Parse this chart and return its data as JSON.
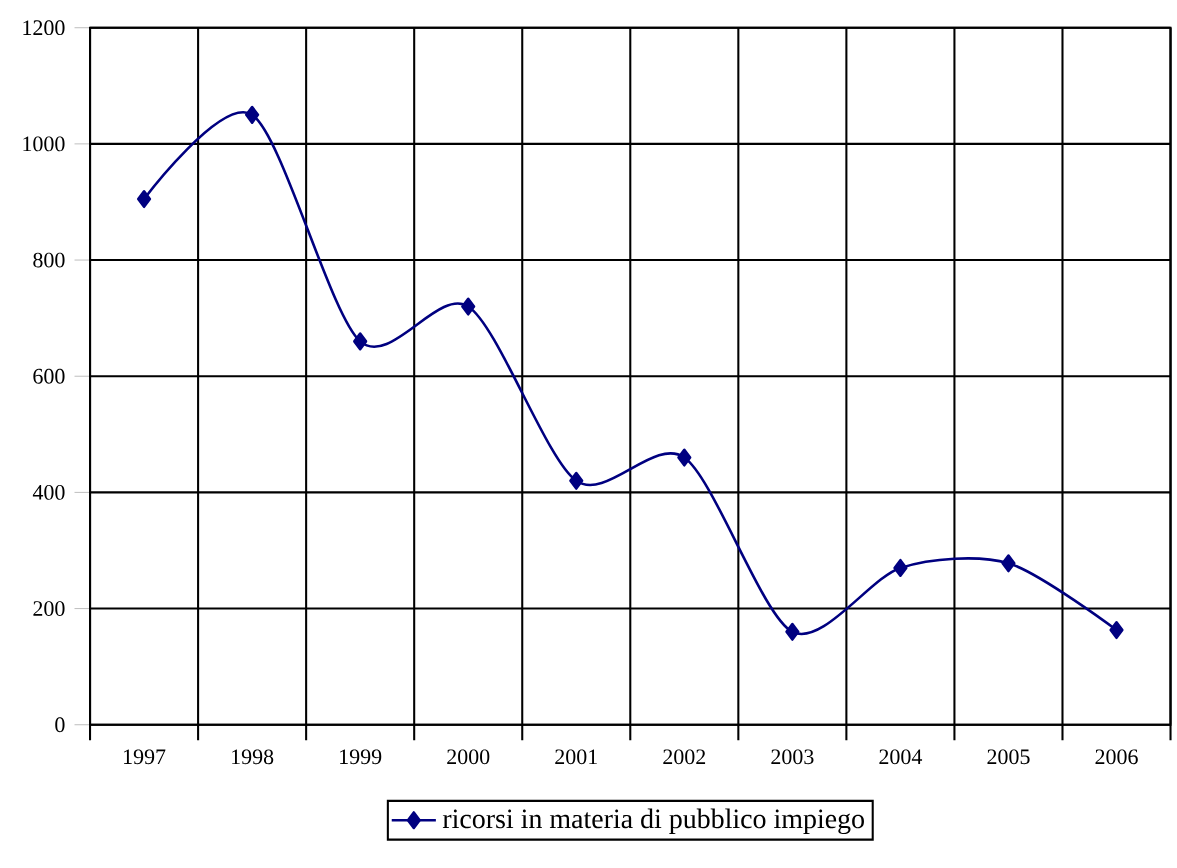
{
  "chart_data": {
    "type": "line",
    "categories": [
      "1997",
      "1998",
      "1999",
      "2000",
      "2001",
      "2002",
      "2003",
      "2004",
      "2005",
      "2006"
    ],
    "series": [
      {
        "name": "ricorsi in materia di pubblico impiego",
        "color": "#000080",
        "values": [
          905,
          1050,
          660,
          720,
          420,
          460,
          160,
          270,
          278,
          163
        ]
      }
    ],
    "ylim": [
      0,
      1200
    ],
    "yticks": [
      0,
      200,
      400,
      600,
      800,
      1000,
      1200
    ],
    "grid": true,
    "legend": "bottom",
    "marker": "diamond"
  }
}
